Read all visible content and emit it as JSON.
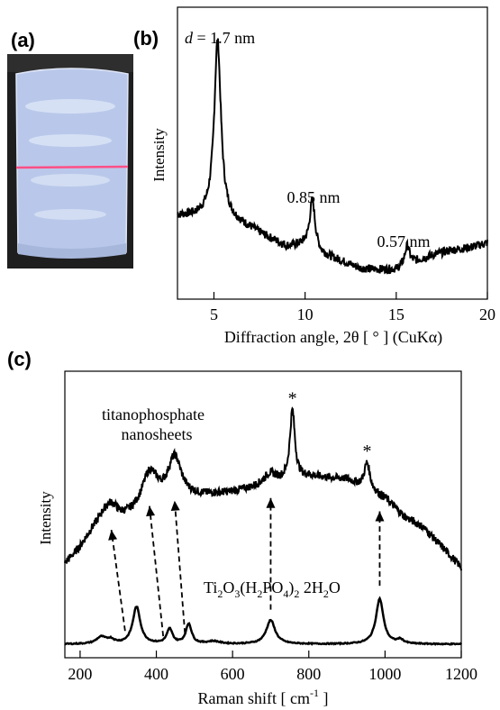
{
  "panels": {
    "a": {
      "label": "(a)",
      "photo": {
        "description_icon": "beaker-photo",
        "colors": {
          "background": "#1e1e1e",
          "liquid": "#b6c6e8",
          "glow": "#d8e2f6",
          "line": "#ff4f86"
        }
      }
    },
    "b": {
      "label": "(b)",
      "chart_data": {
        "type": "line",
        "xlabel": "Diffraction angle,  2θ [ ° ]  (CuKα)",
        "ylabel": "Intensity",
        "xlim": [
          3,
          20
        ],
        "ylim": [
          0,
          1
        ],
        "x_ticks": [
          5,
          10,
          15,
          20
        ],
        "x_tick_labels": [
          "5",
          "10",
          "15",
          "20"
        ],
        "grid": false,
        "baseline": [
          [
            3.0,
            0.26
          ],
          [
            4.0,
            0.26
          ],
          [
            5.0,
            0.27
          ],
          [
            6.0,
            0.24
          ],
          [
            7.0,
            0.21
          ],
          [
            8.0,
            0.17
          ],
          [
            9.0,
            0.135
          ],
          [
            10.0,
            0.14
          ],
          [
            11.0,
            0.1
          ],
          [
            12.0,
            0.075
          ],
          [
            13.0,
            0.045
          ],
          [
            14.0,
            0.04
          ],
          [
            15.0,
            0.04
          ],
          [
            16.0,
            0.07
          ],
          [
            17.0,
            0.1
          ],
          [
            18.0,
            0.12
          ],
          [
            19.0,
            0.13
          ],
          [
            20.0,
            0.15
          ]
        ],
        "peaks": [
          {
            "center": 5.2,
            "height": 0.72,
            "width": 0.22,
            "label_d": "d",
            "label": " = 1.7 nm"
          },
          {
            "center": 10.4,
            "height": 0.2,
            "width": 0.18,
            "label": "0.85 nm"
          },
          {
            "center": 15.6,
            "height": 0.08,
            "width": 0.16,
            "label": "0.57 nm"
          }
        ],
        "line_color": "#000000"
      }
    },
    "c": {
      "label": "(c)",
      "chart_data": {
        "type": "line",
        "xlabel": "Raman shift  [ cm",
        "xlabel_sup": "-1",
        "xlabel_end": " ]",
        "ylabel": "Intensity",
        "xlim": [
          160,
          1200
        ],
        "ylim": [
          0,
          1
        ],
        "x_ticks": [
          200,
          400,
          600,
          800,
          1000,
          1200
        ],
        "x_tick_labels": [
          "200",
          "400",
          "600",
          "800",
          "1000",
          "1200"
        ],
        "grid": false,
        "series": [
          {
            "name": "titanophosphate nanosheets",
            "name_lines": [
              "titanophosphate",
              "nanosheets"
            ],
            "baseline": [
              [
                160,
                0.3
              ],
              [
                200,
                0.36
              ],
              [
                230,
                0.42
              ],
              [
                260,
                0.46
              ],
              [
                300,
                0.45
              ],
              [
                400,
                0.52
              ],
              [
                500,
                0.55
              ],
              [
                600,
                0.57
              ],
              [
                700,
                0.6
              ],
              [
                800,
                0.63
              ],
              [
                900,
                0.62
              ],
              [
                1000,
                0.55
              ],
              [
                1050,
                0.48
              ],
              [
                1100,
                0.44
              ],
              [
                1200,
                0.29
              ]
            ],
            "peaks": [
              {
                "center": 282,
                "height": 0.07,
                "width": 25
              },
              {
                "center": 382,
                "height": 0.13,
                "width": 25
              },
              {
                "center": 448,
                "height": 0.16,
                "width": 22
              },
              {
                "center": 698,
                "height": 0.04,
                "width": 20
              },
              {
                "center": 757,
                "height": 0.26,
                "width": 8
              },
              {
                "center": 953,
                "height": 0.1,
                "width": 9
              }
            ],
            "starred_peaks": [
              757,
              953
            ]
          },
          {
            "name": "Ti2O3(H2PO4)2 2H2O",
            "baseline": [
              [
                160,
                0.0
              ],
              [
                1200,
                0.0
              ]
            ],
            "peaks": [
              {
                "center": 255,
                "height": 0.025,
                "width": 15
              },
              {
                "center": 280,
                "height": 0.015,
                "width": 12
              },
              {
                "center": 348,
                "height": 0.14,
                "width": 12
              },
              {
                "center": 435,
                "height": 0.055,
                "width": 9
              },
              {
                "center": 485,
                "height": 0.075,
                "width": 9
              },
              {
                "center": 550,
                "height": 0.01,
                "width": 20
              },
              {
                "center": 700,
                "height": 0.09,
                "width": 14
              },
              {
                "center": 986,
                "height": 0.17,
                "width": 12
              },
              {
                "center": 1040,
                "height": 0.015,
                "width": 10
              }
            ]
          }
        ],
        "series_label_parts": [
          "Ti",
          "2",
          "O",
          "3",
          "(H",
          "2",
          "PO",
          "4",
          ")",
          "2",
          " 2H",
          "2",
          "O"
        ],
        "star": "*",
        "arrows": [
          {
            "from": [
              318,
              0.05
            ],
            "to": [
              282,
              0.43
            ]
          },
          {
            "from": [
              418,
              0.03
            ],
            "to": [
              382,
              0.52
            ]
          },
          {
            "from": [
              475,
              0.04
            ],
            "to": [
              448,
              0.54
            ]
          },
          {
            "from": [
              700,
              0.13
            ],
            "to": [
              700,
              0.55
            ]
          },
          {
            "from": [
              986,
              0.22
            ],
            "to": [
              986,
              0.5
            ]
          }
        ]
      }
    }
  }
}
